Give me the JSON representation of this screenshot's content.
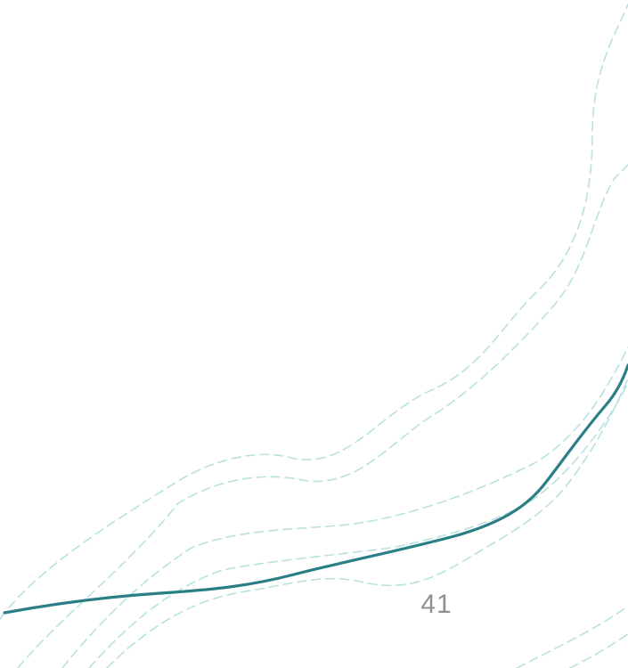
{
  "page": {
    "number": "41"
  },
  "colors": {
    "background": "#ffffff",
    "main_curve": "#2a7f86",
    "dashed_curves": "#b9e1e1",
    "page_number": "#8f8f8f"
  }
}
